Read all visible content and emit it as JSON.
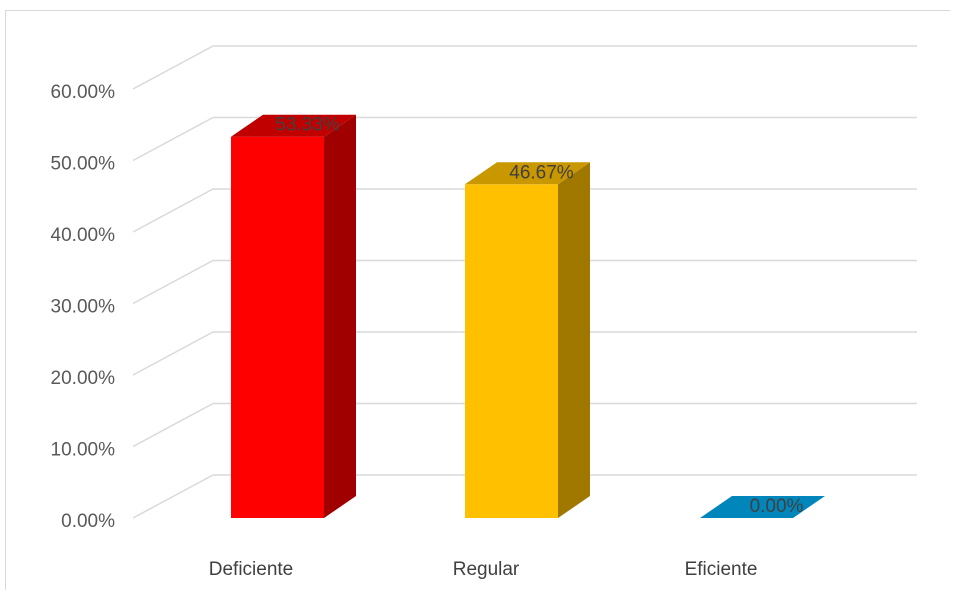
{
  "chart_data": {
    "type": "bar",
    "style": "3d-column",
    "categories": [
      "Deficiente",
      "Regular",
      "Eficiente"
    ],
    "values": [
      53.33,
      46.67,
      0.0
    ],
    "data_labels": [
      "53.33%",
      "46.67%",
      "0.00%"
    ],
    "colors": [
      "#ff0000",
      "#ffc000",
      "#0080b0"
    ],
    "side_colors": [
      "#a00000",
      "#a07800",
      "#006a94"
    ],
    "top_colors": [
      "#c00000",
      "#c99700",
      "#0086bb"
    ],
    "y_ticks": [
      "0.00%",
      "10.00%",
      "20.00%",
      "30.00%",
      "40.00%",
      "50.00%",
      "60.00%"
    ],
    "ylim": [
      0,
      60
    ],
    "grid": true,
    "title": "",
    "xlabel": "",
    "ylabel": ""
  }
}
